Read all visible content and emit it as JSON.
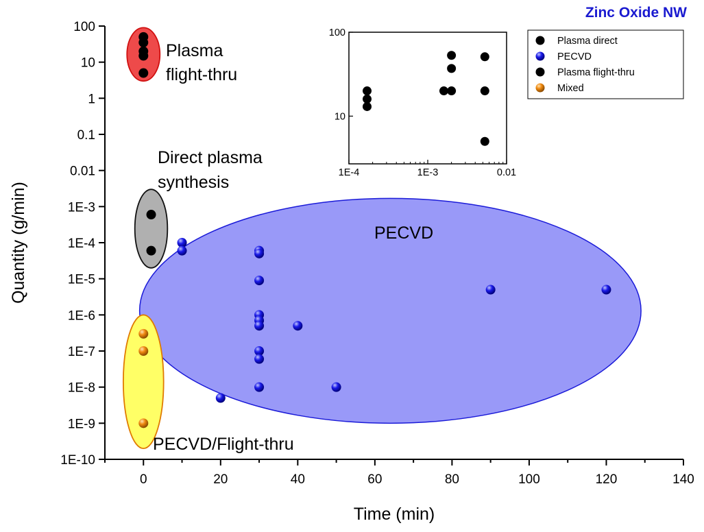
{
  "chart_data": {
    "type": "scatter",
    "title": "Zinc Oxide NW",
    "xlabel": "Time (min)",
    "ylabel": "Quantity (g/min)",
    "xlim": [
      -10,
      140
    ],
    "ylim": [
      1e-10,
      100
    ],
    "y_scale": "log",
    "x_ticks": [
      "0",
      "20",
      "40",
      "60",
      "80",
      "100",
      "120",
      "140"
    ],
    "y_ticks": [
      "100",
      "10",
      "1",
      "0.1",
      "0.01",
      "1E-3",
      "1E-4",
      "1E-5",
      "1E-6",
      "1E-7",
      "1E-8",
      "1E-9",
      "1E-10"
    ],
    "legend_position": "top-right",
    "series": [
      {
        "name": "Plasma direct",
        "color": "#111111",
        "points": [
          [
            2,
            0.0006
          ],
          [
            2,
            6e-05
          ]
        ]
      },
      {
        "name": "PECVD",
        "color": "#1414e6",
        "points": [
          [
            10,
            0.0001
          ],
          [
            10,
            6e-05
          ],
          [
            20,
            5e-09
          ],
          [
            30,
            6e-05
          ],
          [
            30,
            5e-05
          ],
          [
            30,
            9e-06
          ],
          [
            30,
            1e-06
          ],
          [
            30,
            7e-07
          ],
          [
            30,
            5e-07
          ],
          [
            30,
            1e-07
          ],
          [
            30,
            6e-08
          ],
          [
            30,
            1e-08
          ],
          [
            40,
            5e-07
          ],
          [
            50,
            1e-08
          ],
          [
            90,
            5e-06
          ],
          [
            120,
            5e-06
          ]
        ]
      },
      {
        "name": "Plasma flight-thru",
        "color": "#ee1111",
        "points": [
          [
            0,
            50
          ],
          [
            0,
            35
          ],
          [
            0,
            20
          ],
          [
            0,
            15
          ],
          [
            0,
            5
          ]
        ]
      },
      {
        "name": "Mixed",
        "color": "#f08a10",
        "points": [
          [
            0,
            3e-07
          ],
          [
            0,
            1e-07
          ],
          [
            0,
            1e-09
          ]
        ]
      }
    ],
    "annotations": [
      {
        "id": "plasma-flight-thru",
        "lines": [
          "Plasma",
          "flight-thru"
        ]
      },
      {
        "id": "direct-plasma",
        "lines": [
          "Direct plasma",
          "synthesis"
        ]
      },
      {
        "id": "pecvd",
        "lines": [
          "PECVD"
        ]
      },
      {
        "id": "pecvd-flight-thru",
        "lines": [
          "PECVD/Flight-thru"
        ]
      }
    ],
    "regions": [
      {
        "label": "Plasma flight-thru",
        "color": "#ee4a4a",
        "x_center": 0,
        "y_range": [
          3,
          90
        ]
      },
      {
        "label": "Direct plasma synthesis",
        "color": "#b0b0b0",
        "x_center": 2,
        "y_range": [
          2e-05,
          0.003
        ]
      },
      {
        "label": "PECVD",
        "x_center": 64,
        "x_range": [
          -2,
          128
        ],
        "y_center": 1.3e-06,
        "color": "#9999f8"
      },
      {
        "label": "PECVD/Flight-thru",
        "color": "#ffff66",
        "x_center": 0,
        "y_range": [
          2e-10,
          1e-06
        ]
      }
    ],
    "inset": {
      "type": "scatter",
      "x_scale": "log",
      "y_scale": "log",
      "xlim": [
        0.0001,
        0.01
      ],
      "ylim": [
        2.7,
        100
      ],
      "x_ticks": [
        "1E-4",
        "1E-3",
        "0.01"
      ],
      "y_ticks": [
        "100",
        "10"
      ],
      "color": "#ee1111",
      "points": [
        [
          0.00017,
          20
        ],
        [
          0.00017,
          16
        ],
        [
          0.00017,
          13
        ],
        [
          0.0016,
          20
        ],
        [
          0.002,
          53
        ],
        [
          0.002,
          37
        ],
        [
          0.002,
          20
        ],
        [
          0.0053,
          51
        ],
        [
          0.0053,
          20
        ],
        [
          0.0053,
          5
        ]
      ]
    }
  }
}
